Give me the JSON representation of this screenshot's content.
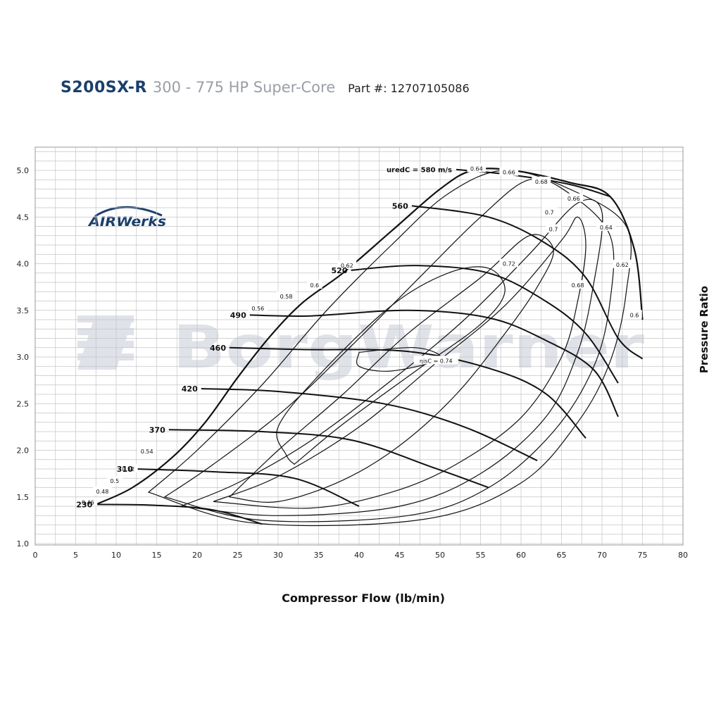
{
  "header": {
    "model": "S200SX-R",
    "subtitle": "300 - 775 HP Super-Core",
    "part_number": "Part #: 12707105086"
  },
  "logos": {
    "airwerks": "AIRWerks",
    "watermark": "BorgWarner"
  },
  "colors": {
    "header_model": "#1b3f6b",
    "header_subtitle": "#9a9ea6",
    "airwerks_logo": "#1b3f6b",
    "grid": "#bdbdbd",
    "curves": "#111111",
    "watermark": "#c8ccd8"
  },
  "chart_data": {
    "type": "line",
    "title": "",
    "xlabel": "Compressor Flow (lb/min)",
    "ylabel": "Pressure Ratio",
    "xlim": [
      0,
      80
    ],
    "ylim": [
      1.0,
      5.2
    ],
    "xticks": [
      0,
      5,
      10,
      15,
      20,
      25,
      30,
      35,
      40,
      45,
      50,
      55,
      60,
      65,
      70,
      75,
      80
    ],
    "yticks": [
      "1.0",
      "1.5",
      "2.0",
      "2.5",
      "3.0",
      "3.5",
      "4.0",
      "4.5",
      "5.0"
    ],
    "grid": true,
    "surge_line": [
      [
        7.5,
        1.42
      ],
      [
        12,
        1.6
      ],
      [
        17,
        1.93
      ],
      [
        21,
        2.3
      ],
      [
        25,
        2.78
      ],
      [
        29,
        3.22
      ],
      [
        33,
        3.58
      ],
      [
        38,
        3.9
      ],
      [
        44,
        4.35
      ],
      [
        50,
        4.8
      ],
      [
        54,
        5.0
      ],
      [
        59,
        5.0
      ],
      [
        66,
        4.87
      ],
      [
        71,
        4.72
      ],
      [
        74,
        4.15
      ],
      [
        75,
        3.4
      ]
    ],
    "speed_lines": [
      {
        "name": "230",
        "points": [
          [
            7.5,
            1.42
          ],
          [
            15,
            1.41
          ],
          [
            22,
            1.36
          ],
          [
            28,
            1.21
          ]
        ]
      },
      {
        "name": "310",
        "points": [
          [
            12.5,
            1.8
          ],
          [
            22,
            1.77
          ],
          [
            32,
            1.7
          ],
          [
            40,
            1.4
          ]
        ]
      },
      {
        "name": "370",
        "points": [
          [
            16.5,
            2.22
          ],
          [
            28,
            2.2
          ],
          [
            39,
            2.11
          ],
          [
            49,
            1.82
          ],
          [
            56,
            1.6
          ]
        ]
      },
      {
        "name": "420",
        "points": [
          [
            20.5,
            2.66
          ],
          [
            30,
            2.63
          ],
          [
            43,
            2.5
          ],
          [
            53,
            2.25
          ],
          [
            62,
            1.89
          ]
        ]
      },
      {
        "name": "460",
        "points": [
          [
            24,
            3.1
          ],
          [
            33,
            3.08
          ],
          [
            46,
            3.06
          ],
          [
            56,
            2.88
          ],
          [
            63,
            2.61
          ],
          [
            68,
            2.13
          ]
        ]
      },
      {
        "name": "490",
        "points": [
          [
            26.5,
            3.45
          ],
          [
            34,
            3.44
          ],
          [
            46,
            3.5
          ],
          [
            56,
            3.42
          ],
          [
            63,
            3.18
          ],
          [
            69,
            2.86
          ],
          [
            72,
            2.36
          ]
        ]
      },
      {
        "name": "520",
        "points": [
          [
            39,
            3.93
          ],
          [
            47,
            3.98
          ],
          [
            56,
            3.9
          ],
          [
            63,
            3.6
          ],
          [
            68,
            3.25
          ],
          [
            72,
            2.72
          ]
        ]
      },
      {
        "name": "560",
        "points": [
          [
            46.5,
            4.62
          ],
          [
            56,
            4.5
          ],
          [
            63,
            4.22
          ],
          [
            68,
            3.85
          ],
          [
            72,
            3.2
          ],
          [
            75,
            2.98
          ]
        ]
      },
      {
        "name": "uredC = 580 m/s",
        "points": [
          [
            52,
            5.01
          ],
          [
            59,
            4.95
          ],
          [
            66,
            4.85
          ],
          [
            71,
            4.72
          ]
        ]
      }
    ],
    "efficiency_labels": [
      "0.46",
      "0.48",
      "0.5",
      "0.52",
      "0.54",
      "0.56",
      "0.58",
      "0.6",
      "0.62",
      "0.64",
      "0.66",
      "0.68",
      "0.66",
      "0.64",
      "0.62",
      "0.6",
      "0.7",
      "0.7",
      "0.72",
      "0.68",
      "ηisC = 0.74"
    ],
    "efficiency_islands": [
      {
        "label": "0.74",
        "points": [
          [
            40,
            3.05
          ],
          [
            47,
            3.1
          ],
          [
            50,
            2.98
          ],
          [
            44,
            2.85
          ],
          [
            40,
            2.9
          ],
          [
            40,
            3.05
          ]
        ]
      },
      {
        "label": "0.72",
        "points": [
          [
            32,
            1.85
          ],
          [
            38,
            2.28
          ],
          [
            47,
            2.85
          ],
          [
            55,
            3.35
          ],
          [
            58,
            3.7
          ],
          [
            56,
            3.95
          ],
          [
            51,
            3.9
          ],
          [
            44,
            3.55
          ],
          [
            35,
            2.8
          ],
          [
            30,
            2.25
          ],
          [
            31,
            1.95
          ],
          [
            32,
            1.85
          ]
        ]
      },
      {
        "label": "0.7",
        "points": [
          [
            24,
            1.5
          ],
          [
            30,
            2.0
          ],
          [
            38,
            2.6
          ],
          [
            46,
            3.25
          ],
          [
            55,
            3.85
          ],
          [
            61,
            4.3
          ],
          [
            64,
            4.15
          ],
          [
            62,
            3.75
          ],
          [
            58,
            3.25
          ],
          [
            52,
            2.6
          ],
          [
            45,
            2.05
          ],
          [
            38,
            1.68
          ],
          [
            30,
            1.45
          ],
          [
            24,
            1.5
          ]
        ]
      },
      {
        "label": "0.68",
        "points": [
          [
            22,
            1.45
          ],
          [
            30,
            1.72
          ],
          [
            40,
            2.25
          ],
          [
            49,
            2.9
          ],
          [
            58,
            3.55
          ],
          [
            65,
            4.25
          ],
          [
            67,
            4.5
          ],
          [
            68,
            4.2
          ],
          [
            67,
            3.6
          ],
          [
            65,
            3.0
          ],
          [
            60,
            2.35
          ],
          [
            52,
            1.85
          ],
          [
            44,
            1.55
          ],
          [
            34,
            1.38
          ],
          [
            22,
            1.45
          ]
        ]
      },
      {
        "label": "0.66",
        "points": [
          [
            18,
            1.4
          ],
          [
            25,
            1.65
          ],
          [
            34,
            2.1
          ],
          [
            44,
            2.75
          ],
          [
            53,
            3.4
          ],
          [
            61,
            4.1
          ],
          [
            67,
            4.65
          ],
          [
            70,
            4.55
          ],
          [
            69,
            3.8
          ],
          [
            67,
            3.05
          ],
          [
            63,
            2.35
          ],
          [
            55,
            1.75
          ],
          [
            45,
            1.4
          ],
          [
            30,
            1.3
          ],
          [
            18,
            1.4
          ]
        ]
      },
      {
        "label": "0.64",
        "points": [
          [
            16,
            1.5
          ],
          [
            22,
            1.85
          ],
          [
            31,
            2.45
          ],
          [
            40,
            3.2
          ],
          [
            48,
            3.9
          ],
          [
            55,
            4.5
          ],
          [
            61,
            4.9
          ],
          [
            66,
            4.75
          ],
          [
            71,
            4.3
          ],
          [
            71,
            3.6
          ],
          [
            69,
            2.9
          ],
          [
            64,
            2.2
          ],
          [
            56,
            1.6
          ],
          [
            46,
            1.3
          ],
          [
            28,
            1.25
          ],
          [
            16,
            1.5
          ]
        ]
      },
      {
        "label": "0.62",
        "points": [
          [
            14,
            1.55
          ],
          [
            20,
            2.0
          ],
          [
            28,
            2.7
          ],
          [
            36,
            3.5
          ],
          [
            44,
            4.2
          ],
          [
            51,
            4.75
          ],
          [
            58,
            5.0
          ],
          [
            66,
            4.8
          ],
          [
            73,
            4.4
          ],
          [
            73,
            3.7
          ],
          [
            71,
            2.95
          ],
          [
            67,
            2.3
          ],
          [
            60,
            1.65
          ],
          [
            48,
            1.26
          ],
          [
            27,
            1.22
          ],
          [
            14,
            1.55
          ]
        ]
      }
    ]
  }
}
